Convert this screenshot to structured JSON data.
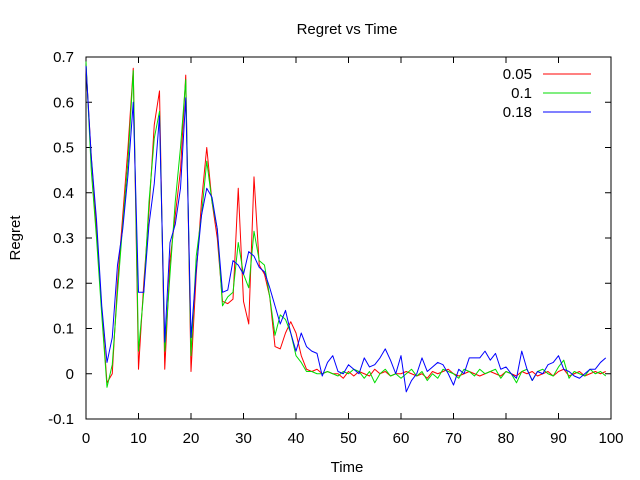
{
  "chart_data": {
    "type": "line",
    "title": "Regret vs Time",
    "xlabel": "Time",
    "ylabel": "Regret",
    "xlim": [
      0,
      100
    ],
    "ylim": [
      -0.1,
      0.7
    ],
    "xticks": [
      0,
      10,
      20,
      30,
      40,
      50,
      60,
      70,
      80,
      90,
      100
    ],
    "yticks": [
      -0.1,
      0,
      0.1,
      0.2,
      0.3,
      0.4,
      0.5,
      0.6,
      0.7
    ],
    "xtick_labels": [
      "0",
      "10",
      "20",
      "30",
      "40",
      "50",
      "60",
      "70",
      "80",
      "90",
      "100"
    ],
    "ytick_labels": [
      "-0.1",
      "0",
      "0.1",
      "0.2",
      "0.3",
      "0.4",
      "0.5",
      "0.6",
      "0.7"
    ],
    "grid": false,
    "legend_position": "top-right",
    "x": [
      0,
      1,
      2,
      3,
      4,
      5,
      6,
      7,
      8,
      9,
      10,
      11,
      12,
      13,
      14,
      15,
      16,
      17,
      18,
      19,
      20,
      21,
      22,
      23,
      24,
      25,
      26,
      27,
      28,
      29,
      30,
      31,
      32,
      33,
      34,
      35,
      36,
      37,
      38,
      39,
      40,
      41,
      42,
      43,
      44,
      45,
      46,
      47,
      48,
      49,
      50,
      51,
      52,
      53,
      54,
      55,
      56,
      57,
      58,
      59,
      60,
      61,
      62,
      63,
      64,
      65,
      66,
      67,
      68,
      69,
      70,
      71,
      72,
      73,
      74,
      75,
      76,
      77,
      78,
      79,
      80,
      81,
      82,
      83,
      84,
      85,
      86,
      87,
      88,
      89,
      90,
      91,
      92,
      93,
      94,
      95,
      96,
      97,
      98,
      99
    ],
    "series": [
      {
        "name": "0.05",
        "color": "#ff0000",
        "values": [
          0.68,
          0.48,
          0.32,
          0.14,
          -0.02,
          0.0,
          0.2,
          0.35,
          0.5,
          0.675,
          0.01,
          0.2,
          0.36,
          0.55,
          0.625,
          0.01,
          0.25,
          0.35,
          0.45,
          0.66,
          0.005,
          0.22,
          0.38,
          0.5,
          0.38,
          0.3,
          0.16,
          0.155,
          0.165,
          0.41,
          0.16,
          0.11,
          0.435,
          0.24,
          0.22,
          0.17,
          0.06,
          0.055,
          0.09,
          0.115,
          0.09,
          0.04,
          0.01,
          0.005,
          0.01,
          0.0,
          0.005,
          0.0,
          0.0,
          -0.01,
          0.005,
          -0.005,
          0.005,
          0.0,
          -0.005,
          0.01,
          0.0,
          0.005,
          -0.005,
          0.0,
          0.0,
          0.005,
          0.0,
          -0.005,
          0.0,
          -0.01,
          0.005,
          0.0,
          0.005,
          0.01,
          0.0,
          -0.005,
          0.0,
          0.005,
          0.0,
          -0.005,
          0.0,
          0.005,
          0.0,
          -0.005,
          0.005,
          0.0,
          -0.005,
          0.005,
          0.0,
          0.005,
          -0.005,
          0.0,
          0.005,
          -0.005,
          0.005,
          0.01,
          -0.005,
          0.0,
          0.005,
          -0.005,
          0.0,
          0.005,
          0.0,
          0.005
        ]
      },
      {
        "name": "0.1",
        "color": "#00dd00",
        "values": [
          0.69,
          0.45,
          0.3,
          0.13,
          -0.03,
          0.02,
          0.18,
          0.33,
          0.47,
          0.67,
          0.05,
          0.18,
          0.38,
          0.52,
          0.58,
          0.05,
          0.22,
          0.38,
          0.5,
          0.65,
          0.04,
          0.26,
          0.35,
          0.47,
          0.38,
          0.32,
          0.15,
          0.17,
          0.18,
          0.29,
          0.22,
          0.19,
          0.315,
          0.25,
          0.24,
          0.17,
          0.085,
          0.13,
          0.12,
          0.09,
          0.04,
          0.025,
          0.005,
          0.005,
          0.0,
          0.0,
          0.005,
          0.0,
          -0.005,
          0.005,
          0.0,
          0.01,
          0.005,
          -0.01,
          0.005,
          -0.02,
          0.0,
          0.01,
          -0.005,
          0.0,
          -0.01,
          0.0,
          0.01,
          -0.005,
          0.005,
          -0.015,
          0.0,
          -0.01,
          0.01,
          0.005,
          0.0,
          -0.01,
          0.01,
          0.005,
          -0.005,
          0.01,
          0.0,
          0.005,
          0.01,
          -0.01,
          0.005,
          0.0,
          -0.02,
          0.005,
          0.01,
          -0.015,
          0.005,
          0.01,
          0.0,
          -0.005,
          0.015,
          0.03,
          -0.01,
          0.005,
          0.0,
          -0.005,
          0.01,
          0.0,
          0.005,
          -0.005
        ]
      },
      {
        "name": "0.18",
        "color": "#0000ff",
        "values": [
          0.68,
          0.48,
          0.34,
          0.15,
          0.025,
          0.08,
          0.24,
          0.32,
          0.44,
          0.6,
          0.18,
          0.18,
          0.33,
          0.42,
          0.57,
          0.07,
          0.29,
          0.33,
          0.41,
          0.61,
          0.08,
          0.23,
          0.35,
          0.41,
          0.39,
          0.32,
          0.18,
          0.185,
          0.25,
          0.24,
          0.22,
          0.27,
          0.26,
          0.235,
          0.225,
          0.19,
          0.15,
          0.11,
          0.14,
          0.09,
          0.05,
          0.09,
          0.06,
          0.05,
          0.045,
          -0.005,
          0.025,
          0.04,
          0.005,
          0.0,
          0.02,
          0.01,
          0.0,
          0.035,
          0.015,
          0.02,
          0.035,
          0.055,
          0.03,
          0.0,
          0.04,
          -0.04,
          -0.015,
          0.0,
          0.035,
          0.005,
          0.015,
          0.025,
          0.02,
          0.0,
          -0.025,
          0.01,
          0.0,
          0.035,
          0.035,
          0.035,
          0.05,
          0.03,
          0.045,
          0.01,
          0.015,
          0.0,
          -0.01,
          0.05,
          0.01,
          -0.015,
          0.005,
          0.0,
          0.02,
          0.025,
          0.04,
          0.01,
          0.005,
          -0.005,
          -0.01,
          0.0,
          0.01,
          0.01,
          0.025,
          0.035
        ]
      }
    ]
  }
}
